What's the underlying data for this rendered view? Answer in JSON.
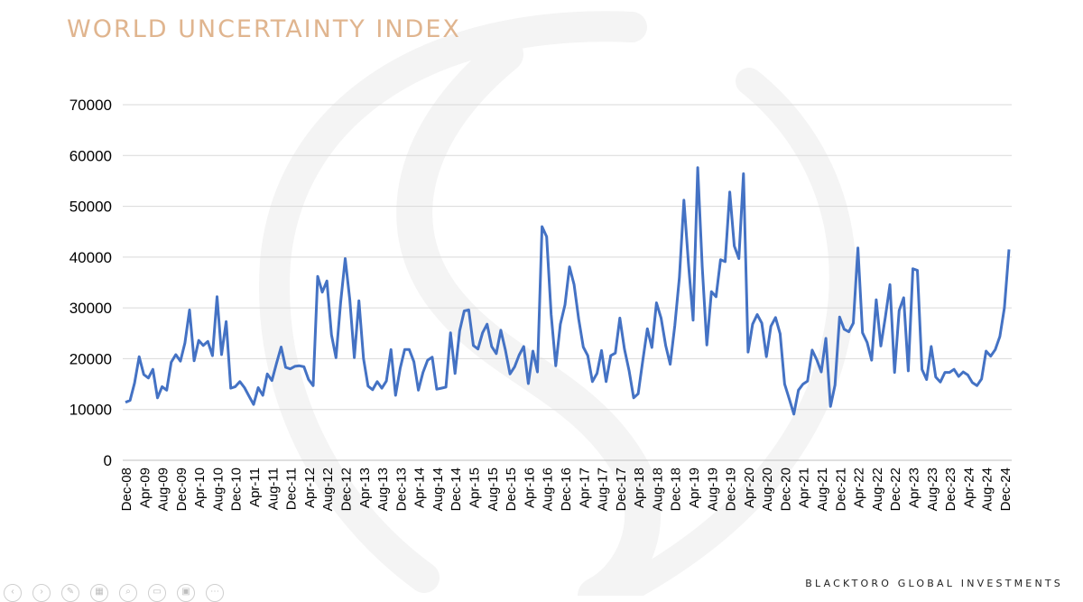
{
  "page": {
    "title": "WORLD UNCERTAINTY INDEX",
    "brand": "BLACKTORO GLOBAL INVESTMENTS"
  },
  "colors": {
    "title": "#e0b58f",
    "line": "#4472c4",
    "grid": "#d9d9d9",
    "axis_text": "#000000",
    "watermark": "#f4f4f4"
  },
  "toolbar": {
    "icons": [
      "back-icon",
      "forward-icon",
      "pen-icon",
      "grid-icon",
      "zoom-icon",
      "window-icon",
      "camera-icon",
      "more-icon"
    ]
  },
  "chart_data": {
    "type": "line",
    "title": "",
    "xlabel": "",
    "ylabel": "",
    "ylim": [
      0,
      70000
    ],
    "y_ticks": [
      0,
      10000,
      20000,
      30000,
      40000,
      50000,
      60000,
      70000
    ],
    "y_tick_labels": [
      "0",
      "10000",
      "20000",
      "30000",
      "40000",
      "50000",
      "60000",
      "70000"
    ],
    "grid": "horizontal",
    "legend": "none",
    "x_tick_labels": [
      "Dec-08",
      "Apr-09",
      "Aug-09",
      "Dec-09",
      "Apr-10",
      "Aug-10",
      "Dec-10",
      "Apr-11",
      "Aug-11",
      "Dec-11",
      "Apr-12",
      "Aug-12",
      "Dec-12",
      "Apr-13",
      "Aug-13",
      "Dec-13",
      "Apr-14",
      "Aug-14",
      "Dec-14",
      "Apr-15",
      "Aug-15",
      "Dec-15",
      "Apr-16",
      "Aug-16",
      "Dec-16",
      "Apr-17",
      "Aug-17",
      "Dec-17",
      "Apr-18",
      "Aug-18",
      "Dec-18",
      "Apr-19",
      "Aug-19",
      "Dec-19",
      "Apr-20",
      "Aug-20",
      "Dec-20",
      "Apr-21",
      "Aug-21",
      "Dec-21",
      "Apr-22",
      "Aug-22",
      "Dec-22",
      "Apr-23",
      "Aug-23",
      "Dec-23",
      "Apr-24",
      "Aug-24",
      "Dec-24"
    ],
    "x_start": "Dec-08",
    "x_end": "Mar-25",
    "series": [
      {
        "values": [
          11400,
          11800,
          15200,
          20400,
          16900,
          16200,
          17900,
          12300,
          14500,
          13800,
          19300,
          20800,
          19500,
          23100,
          29600,
          19600,
          23600,
          22600,
          23400,
          20600,
          32200,
          20800,
          27300,
          14200,
          14500,
          15500,
          14300,
          12600,
          11000,
          14300,
          12800,
          17000,
          15700,
          19100,
          22300,
          18300,
          18000,
          18500,
          18600,
          18400,
          15900,
          14700,
          36200,
          33100,
          35300,
          24700,
          20200,
          31000,
          39700,
          31600,
          20200,
          31400,
          20000,
          14600,
          13900,
          15500,
          14200,
          15600,
          21800,
          12800,
          18100,
          21800,
          21800,
          19400,
          13800,
          17300,
          19700,
          20300,
          14000,
          14200,
          14400,
          25100,
          17100,
          25500,
          29400,
          29600,
          22600,
          21900,
          25100,
          26800,
          22400,
          21000,
          25600,
          21700,
          17000,
          18400,
          20700,
          22400,
          15100,
          21500,
          17400,
          46000,
          44000,
          28700,
          18600,
          26800,
          30600,
          38100,
          34600,
          27800,
          22300,
          20600,
          15500,
          17100,
          21600,
          15500,
          20600,
          21100,
          28000,
          21900,
          17700,
          12300,
          13100,
          19600,
          25900,
          22200,
          31000,
          28000,
          22600,
          18900,
          26500,
          36000,
          51200,
          38600,
          27600,
          57600,
          38100,
          22700,
          33200,
          32200,
          39500,
          39100,
          52800,
          42200,
          39700,
          56400,
          21300,
          26800,
          28700,
          27000,
          20400,
          26400,
          28100,
          24900,
          15000,
          12100,
          9100,
          13800,
          15000,
          15600,
          21700,
          19800,
          17400,
          24000,
          10600,
          14800,
          28200,
          25800,
          25300,
          27000,
          41800,
          25100,
          23200,
          19700,
          31600,
          22500,
          28200,
          34600,
          17300,
          29500,
          32000,
          17600,
          37700,
          37400,
          17900,
          15900,
          22400,
          16400,
          15400,
          17300,
          17300,
          17900,
          16500,
          17400,
          16800,
          15300,
          14700,
          16000,
          21500,
          20500,
          21800,
          24400,
          30000,
          41500
        ]
      }
    ]
  }
}
